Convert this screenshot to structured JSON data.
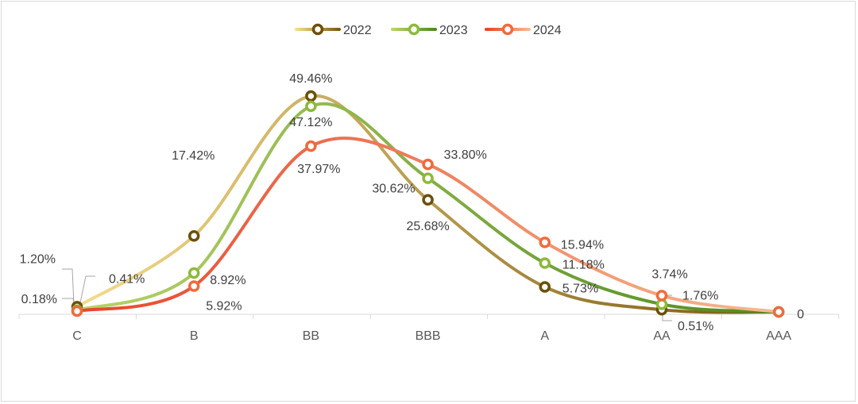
{
  "chart_data": {
    "type": "line",
    "smooth": true,
    "categories": [
      "C",
      "B",
      "BB",
      "BBB",
      "A",
      "AA",
      "AAA"
    ],
    "ylim": [
      0,
      52
    ],
    "grid": false,
    "legend_position": "top-center",
    "series": [
      {
        "name": "2022",
        "values": [
          1.2,
          17.42,
          49.46,
          25.68,
          5.73,
          0.51,
          0
        ],
        "labels": [
          "1.20%",
          "17.42%",
          "49.46%",
          "25.68%",
          "5.73%",
          "0.51%",
          ""
        ],
        "colors": {
          "light": "#f5dc8c",
          "dark": "#7a5a10",
          "marker": "#6b4f0a"
        }
      },
      {
        "name": "2023",
        "values": [
          0.41,
          8.92,
          47.12,
          30.62,
          11.18,
          1.76,
          0
        ],
        "labels": [
          "0.41%",
          "8.92%",
          "47.12%",
          "30.62%",
          "11.18%",
          "1.76%",
          ""
        ],
        "colors": {
          "light": "#b9d36a",
          "dark": "#4e8a1f",
          "marker": "#8db93a"
        }
      },
      {
        "name": "2024",
        "values": [
          0.18,
          5.92,
          37.97,
          33.8,
          15.94,
          3.74,
          0
        ],
        "labels": [
          "0.18%",
          "5.92%",
          "37.97%",
          "33.80%",
          "15.94%",
          "3.74%",
          "0"
        ],
        "colors": {
          "light": "#f6b98f",
          "dark": "#e8452c",
          "marker": "#f06a3c"
        }
      }
    ]
  }
}
